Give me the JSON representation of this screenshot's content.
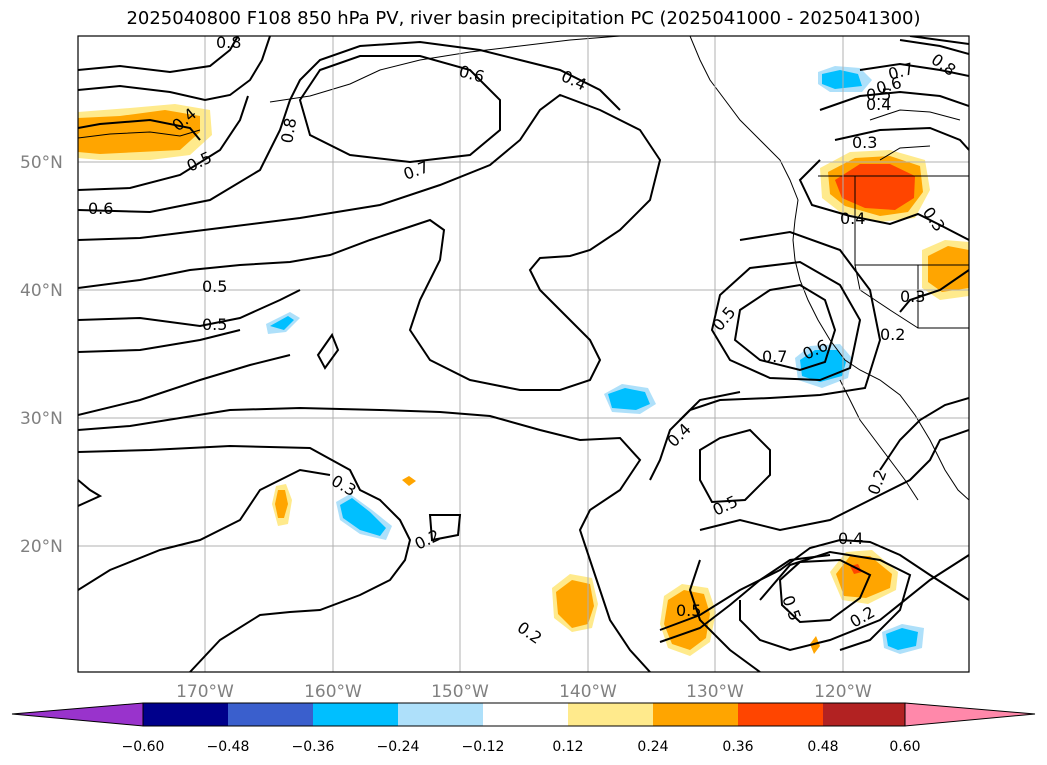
{
  "title": "2025040800 F108 850 hPa PV, river basin precipitation PC (2025041000 - 2025041300)",
  "map": {
    "latitude_labels": [
      "50°N",
      "40°N",
      "30°N",
      "20°N"
    ],
    "longitude_labels": [
      "170°W",
      "160°W",
      "150°W",
      "140°W",
      "130°W",
      "120°W"
    ],
    "grid": true,
    "contour_variable": "850 hPa PV",
    "contour_labels": [
      "0.8",
      "0.6",
      "0.4",
      "0.4",
      "0.5",
      "0.6",
      "0.8",
      "0.7",
      "0.8",
      "0.7",
      "0.6",
      "0.5",
      "0.4",
      "0.3",
      "0.4",
      "0.3",
      "0.3",
      "0.5",
      "0.5",
      "0.5",
      "0.7",
      "0.6",
      "0.4",
      "0.5",
      "0.3",
      "0.2",
      "0.2",
      "0.5",
      "0.2",
      "0.5",
      "0.4",
      "0.2",
      "0.2"
    ],
    "shading_colors": {
      "positive_light": "#ffea8c",
      "positive_mid": "#ffa500",
      "positive_strong": "#ff4500",
      "negative_light": "#aee0fa",
      "negative_mid": "#00bfff"
    }
  },
  "colorbar": {
    "ticks": [
      "−0.60",
      "−0.48",
      "−0.36",
      "−0.24",
      "−0.12",
      "0.12",
      "0.24",
      "0.36",
      "0.48",
      "0.60"
    ],
    "colors": [
      "#9933cc",
      "#00008b",
      "#3a5fcd",
      "#00bfff",
      "#aee0fa",
      "#ffffff",
      "#ffea8c",
      "#ffa500",
      "#ff4500",
      "#b22222",
      "#ff88aa",
      "#ff88aa"
    ]
  }
}
